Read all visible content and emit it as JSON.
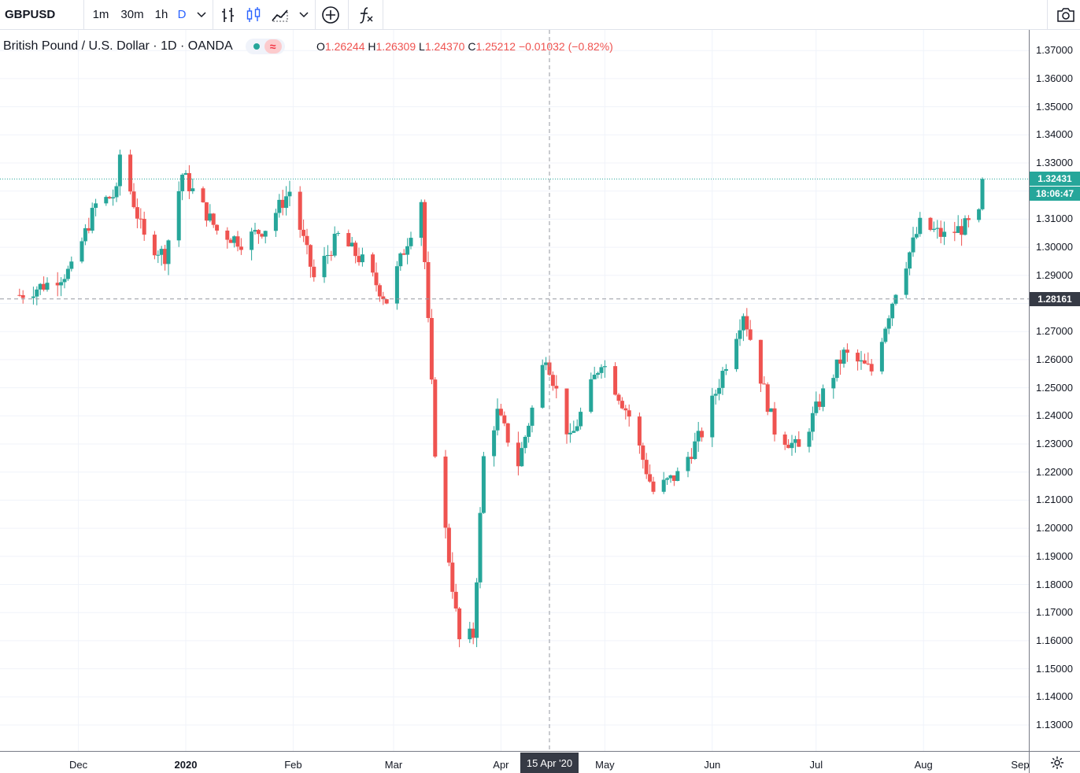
{
  "toolbar": {
    "symbol": "GBPUSD",
    "intervals": [
      "1m",
      "30m",
      "1h",
      "D"
    ],
    "active_interval": "D"
  },
  "legend": {
    "title": "British Pound / U.S. Dollar · 1D · OANDA",
    "ohlc": {
      "o_label": "O",
      "o": "1.26244",
      "h_label": "H",
      "h": "1.26309",
      "l_label": "L",
      "l": "1.24370",
      "c_label": "C",
      "c": "1.25212",
      "change": "−0.01032 (−0.82%)"
    }
  },
  "price_axis": {
    "ticks": [
      "1.37000",
      "1.36000",
      "1.35000",
      "1.34000",
      "1.33000",
      "1.31000",
      "1.30000",
      "1.29000",
      "1.27000",
      "1.26000",
      "1.25000",
      "1.24000",
      "1.23000",
      "1.22000",
      "1.21000",
      "1.20000",
      "1.19000",
      "1.18000",
      "1.17000",
      "1.16000",
      "1.15000",
      "1.14000",
      "1.13000"
    ],
    "last_price": "1.32431",
    "countdown": "18:06:47",
    "crosshair_price": "1.28161"
  },
  "time_axis": {
    "labels": [
      {
        "text": "Dec",
        "bold": false
      },
      {
        "text": "2020",
        "bold": true
      },
      {
        "text": "Feb",
        "bold": false
      },
      {
        "text": "Mar",
        "bold": false
      },
      {
        "text": "Apr",
        "bold": false
      },
      {
        "text": "May",
        "bold": false
      },
      {
        "text": "Jun",
        "bold": false
      },
      {
        "text": "Jul",
        "bold": false
      },
      {
        "text": "Aug",
        "bold": false
      },
      {
        "text": "Sep",
        "bold": false
      }
    ],
    "crosshair_date": "15 Apr '20"
  },
  "colors": {
    "up": "#26a69a",
    "down": "#ef5350",
    "grid": "#f0f3fa",
    "accent": "#2962ff"
  },
  "chart_data": {
    "type": "candlestick",
    "ylim": [
      1.125,
      1.3755
    ],
    "anchors": [
      {
        "x": "2019-11-14",
        "y": 1.283
      },
      {
        "x": "2019-11-22",
        "y": 1.287
      },
      {
        "x": "2019-11-29",
        "y": 1.292
      },
      {
        "x": "2019-12-06",
        "y": 1.315
      },
      {
        "x": "2019-12-12",
        "y": 1.319
      },
      {
        "x": "2019-12-13",
        "y": 1.333
      },
      {
        "x": "2019-12-20",
        "y": 1.303
      },
      {
        "x": "2019-12-26",
        "y": 1.297
      },
      {
        "x": "2019-12-31",
        "y": 1.326
      },
      {
        "x": "2020-01-10",
        "y": 1.306
      },
      {
        "x": "2020-01-17",
        "y": 1.302
      },
      {
        "x": "2020-01-24",
        "y": 1.307
      },
      {
        "x": "2020-01-31",
        "y": 1.32
      },
      {
        "x": "2020-02-07",
        "y": 1.289
      },
      {
        "x": "2020-02-14",
        "y": 1.304
      },
      {
        "x": "2020-02-21",
        "y": 1.295
      },
      {
        "x": "2020-02-28",
        "y": 1.281
      },
      {
        "x": "2020-03-09",
        "y": 1.317
      },
      {
        "x": "2020-03-13",
        "y": 1.228
      },
      {
        "x": "2020-03-20",
        "y": 1.16
      },
      {
        "x": "2020-03-24",
        "y": 1.162
      },
      {
        "x": "2020-03-27",
        "y": 1.225
      },
      {
        "x": "2020-03-31",
        "y": 1.241
      },
      {
        "x": "2020-04-06",
        "y": 1.223
      },
      {
        "x": "2020-04-14",
        "y": 1.262
      },
      {
        "x": "2020-04-21",
        "y": 1.231
      },
      {
        "x": "2020-04-30",
        "y": 1.26
      },
      {
        "x": "2020-05-08",
        "y": 1.24
      },
      {
        "x": "2020-05-15",
        "y": 1.213
      },
      {
        "x": "2020-05-22",
        "y": 1.219
      },
      {
        "x": "2020-05-29",
        "y": 1.234
      },
      {
        "x": "2020-06-10",
        "y": 1.277
      },
      {
        "x": "2020-06-19",
        "y": 1.235
      },
      {
        "x": "2020-06-26",
        "y": 1.228
      },
      {
        "x": "2020-07-03",
        "y": 1.248
      },
      {
        "x": "2020-07-09",
        "y": 1.262
      },
      {
        "x": "2020-07-17",
        "y": 1.256
      },
      {
        "x": "2020-07-24",
        "y": 1.285
      },
      {
        "x": "2020-07-31",
        "y": 1.308
      },
      {
        "x": "2020-08-07",
        "y": 1.304
      },
      {
        "x": "2020-08-14",
        "y": 1.308
      },
      {
        "x": "2020-08-17",
        "y": 1.311
      },
      {
        "x": "2020-08-18",
        "y": 1.3243
      }
    ],
    "last_price": 1.32431,
    "crosshair": {
      "x": "2020-04-15",
      "y": 1.28161
    }
  }
}
